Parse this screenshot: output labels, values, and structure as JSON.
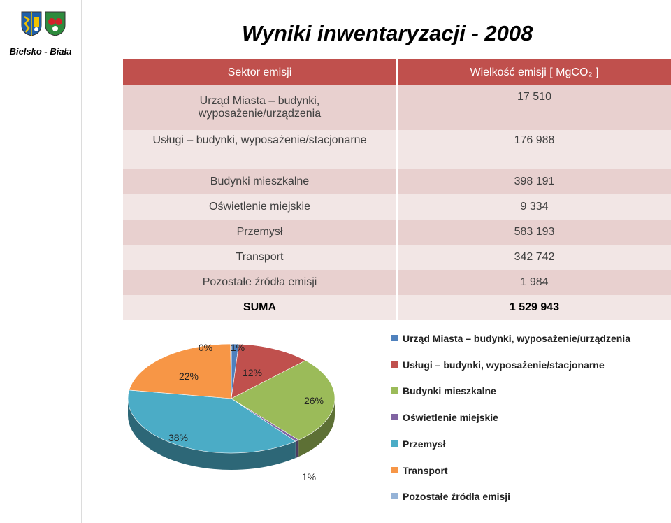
{
  "sidebar": {
    "city_name": "Bielsko - Biała"
  },
  "page": {
    "title": "Wyniki inwentaryzacji - 2008"
  },
  "table": {
    "headers": [
      "Sektor emisji",
      "Wielkość emisji [ MgCO₂ ]"
    ],
    "rows": [
      {
        "sector": "Urząd Miasta – budynki, wyposażenie/urządzenia",
        "sector_line1": "Urząd Miasta – budynki,",
        "sector_line2": "wyposażenie/urządzenia",
        "value": "17 510"
      },
      {
        "sector": "Usługi – budynki, wyposażenie/stacjonarne",
        "value": "176 988"
      },
      {
        "sector": "Budynki mieszkalne",
        "value": "398 191"
      },
      {
        "sector": "Oświetlenie miejskie",
        "value": "9 334"
      },
      {
        "sector": "Przemysł",
        "value": "583 193"
      },
      {
        "sector": "Transport",
        "value": "342 742"
      },
      {
        "sector": "Pozostałe źródła emisji",
        "value": "1 984"
      },
      {
        "sector": "SUMA",
        "value": "1 529 943"
      }
    ]
  },
  "chart_data": {
    "type": "pie",
    "title": "",
    "categories": [
      "Urząd Miasta – budynki, wyposażenie/urządzenia",
      "Usługi – budynki, wyposażenie/stacjonarne",
      "Budynki mieszkalne",
      "Oświetlenie miejskie",
      "Przemysł",
      "Transport",
      "Pozostałe źródła emisji"
    ],
    "values": [
      17510,
      176988,
      398191,
      9334,
      583193,
      342742,
      1984
    ],
    "data_labels": [
      "1%",
      "12%",
      "26%",
      "1%",
      "38%",
      "22%",
      "0%"
    ],
    "colors": [
      "#4f81bd",
      "#c0504d",
      "#9bbb59",
      "#8064a2",
      "#4bacc6",
      "#f79646",
      "#95b3d7"
    ],
    "legend_position": "right"
  }
}
